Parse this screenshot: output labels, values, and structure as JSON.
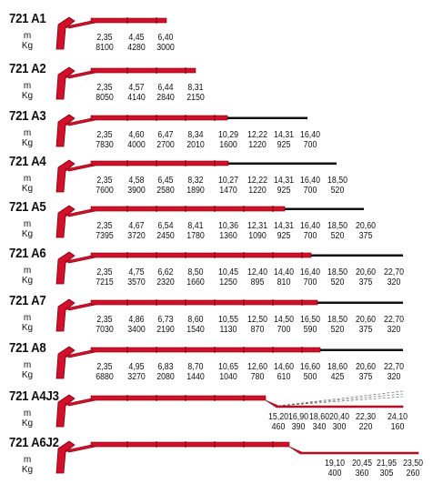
{
  "labels": {
    "m": "m",
    "kg": "Kg"
  },
  "colors": {
    "boom": "#d3102a",
    "boom_dark": "#7a0010",
    "extension": "#111111"
  },
  "models": [
    {
      "name": "721 A1",
      "m": [
        "2,35",
        "4,45",
        "6,40"
      ],
      "kg": [
        "8100",
        "4280",
        "3000"
      ]
    },
    {
      "name": "721 A2",
      "m": [
        "2,35",
        "4,57",
        "6,44",
        "8,31"
      ],
      "kg": [
        "8050",
        "4140",
        "2840",
        "2150"
      ]
    },
    {
      "name": "721 A3",
      "m": [
        "2,35",
        "4,60",
        "6,47",
        "8,34",
        "10,29",
        "12,22",
        "14,31",
        "16,40"
      ],
      "kg": [
        "7830",
        "4000",
        "2700",
        "2010",
        "1600",
        "1220",
        "925",
        "700"
      ]
    },
    {
      "name": "721 A4",
      "m": [
        "2,35",
        "4,58",
        "6,45",
        "8,32",
        "10,27",
        "12,22",
        "14,31",
        "16,40",
        "18,50"
      ],
      "kg": [
        "7600",
        "3900",
        "2580",
        "1890",
        "1470",
        "1220",
        "925",
        "700",
        "520"
      ]
    },
    {
      "name": "721 A5",
      "m": [
        "2,35",
        "4,67",
        "6,54",
        "8,41",
        "10,36",
        "12,31",
        "14,31",
        "16,40",
        "18,50",
        "20,60"
      ],
      "kg": [
        "7395",
        "3720",
        "2450",
        "1780",
        "1360",
        "1090",
        "925",
        "700",
        "520",
        "375"
      ]
    },
    {
      "name": "721 A6",
      "m": [
        "2,35",
        "4,75",
        "6,62",
        "8,50",
        "10,45",
        "12,40",
        "14,40",
        "16,40",
        "18,50",
        "20,60",
        "22,70"
      ],
      "kg": [
        "7215",
        "3570",
        "2320",
        "1660",
        "1250",
        "895",
        "810",
        "700",
        "520",
        "375",
        "320"
      ]
    },
    {
      "name": "721 A7",
      "m": [
        "2,35",
        "4,86",
        "6,73",
        "8,60",
        "10,55",
        "12,50",
        "14,50",
        "16,50",
        "18,50",
        "20,60",
        "22,70"
      ],
      "kg": [
        "7030",
        "3400",
        "2190",
        "1540",
        "1130",
        "870",
        "700",
        "590",
        "520",
        "375",
        "320"
      ]
    },
    {
      "name": "721 A8",
      "m": [
        "2,35",
        "4,95",
        "6,83",
        "8,70",
        "10,65",
        "12,60",
        "14,60",
        "16,60",
        "18,60",
        "20,60",
        "22,70"
      ],
      "kg": [
        "6880",
        "3270",
        "2080",
        "1440",
        "1040",
        "780",
        "610",
        "500",
        "425",
        "375",
        "320"
      ]
    },
    {
      "name": "721 A4J3",
      "m": [
        "15,20",
        "16,90",
        "18,60",
        "20,40",
        "22,30",
        "24,10"
      ],
      "kg": [
        "460",
        "390",
        "340",
        "300",
        "220",
        "160"
      ]
    },
    {
      "name": "721 A6J2",
      "m": [
        "19,10",
        "20,45",
        "21,95",
        "23,50"
      ],
      "kg": [
        "400",
        "360",
        "305",
        "260"
      ]
    }
  ]
}
